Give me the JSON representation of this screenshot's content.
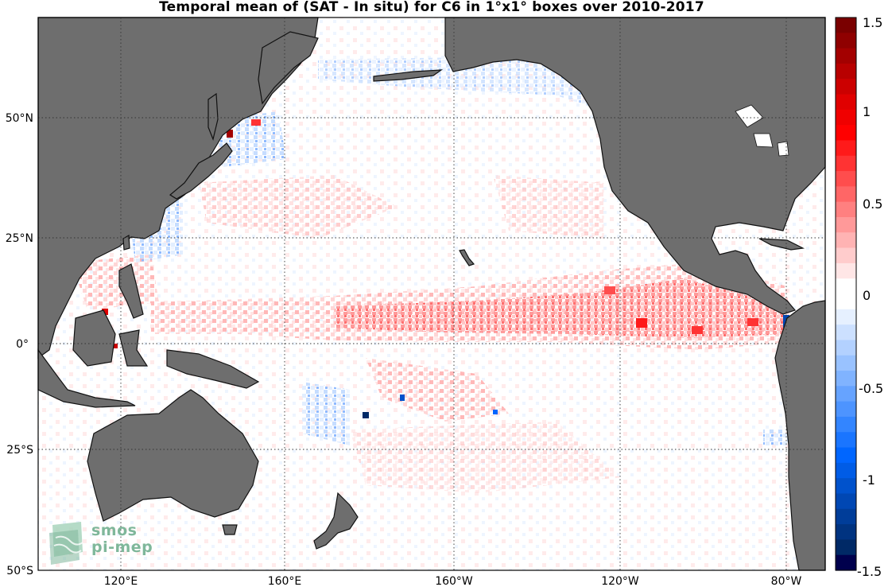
{
  "title": "Temporal mean of (SAT - In situ) for C6 in 1°x1° boxes over 2010-2017",
  "map": {
    "latitude_labels": [
      "50°N",
      "25°N",
      "0°",
      "25°S",
      "50°S"
    ],
    "longitude_labels": [
      "120°E",
      "160°E",
      "160°W",
      "120°W",
      "80°W"
    ],
    "lon_range_deg": [
      140,
      290
    ],
    "lat_range_deg": [
      -50,
      65
    ],
    "grid": true,
    "land_color": "#6e6e6e",
    "ocean_color": "#ffffff"
  },
  "colorbar": {
    "min": -1.5,
    "max": 1.5,
    "tick_labels": [
      "1.5",
      "1",
      "0.5",
      "0",
      "-0.5",
      "-1",
      "-1.5"
    ],
    "colors_top_to_bottom": [
      "#7a0000",
      "#8f0000",
      "#a30000",
      "#b80000",
      "#cc0000",
      "#e00000",
      "#f00000",
      "#ff0000",
      "#ff1a1a",
      "#ff3333",
      "#ff4d4d",
      "#ff6666",
      "#ff8080",
      "#ff9999",
      "#ffb3b3",
      "#ffcccc",
      "#ffe6e6",
      "#ffffff",
      "#ffffff",
      "#e6f0ff",
      "#cce0ff",
      "#b3d1ff",
      "#99c2ff",
      "#80b3ff",
      "#66a3ff",
      "#4d94ff",
      "#3385ff",
      "#1a75ff",
      "#0066ff",
      "#005ce6",
      "#0052cc",
      "#0047b3",
      "#003d99",
      "#003380",
      "#002966",
      "#00004d"
    ]
  },
  "logo": {
    "line1": "smos",
    "line2": "pi-mep"
  }
}
